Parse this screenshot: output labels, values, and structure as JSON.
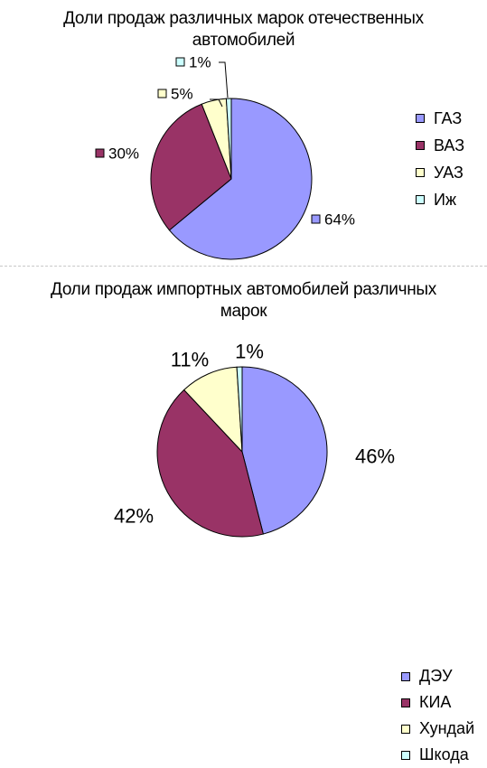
{
  "chart_data": [
    {
      "type": "pie",
      "title": "Доли продаж различных марок отечественных автомобилей",
      "title_lines": [
        "Доли продаж различных марок отечественных",
        "автомобилей"
      ],
      "categories": [
        "ГАЗ",
        "ВАЗ",
        "УАЗ",
        "Иж"
      ],
      "values": [
        64,
        30,
        5,
        1
      ],
      "labels": [
        "64%",
        "30%",
        "5%",
        "1%"
      ],
      "colors": [
        "#9999ff",
        "#993366",
        "#ffffcc",
        "#ccffff"
      ],
      "legend": "right",
      "data_label_style": "with-swatch"
    },
    {
      "type": "pie",
      "title": "Доли продаж импортных автомобилей различных марок",
      "title_lines": [
        "Доли продаж импортных автомобилей различных",
        "марок"
      ],
      "categories": [
        "ДЭУ",
        "КИА",
        "Хундай",
        "Шкода"
      ],
      "values": [
        46,
        42,
        11,
        1
      ],
      "labels": [
        "46%",
        "42%",
        "11%",
        "1%"
      ],
      "colors": [
        "#9999ff",
        "#993366",
        "#ffffcc",
        "#ccffff"
      ],
      "legend": "right",
      "data_label_style": "plain"
    }
  ]
}
